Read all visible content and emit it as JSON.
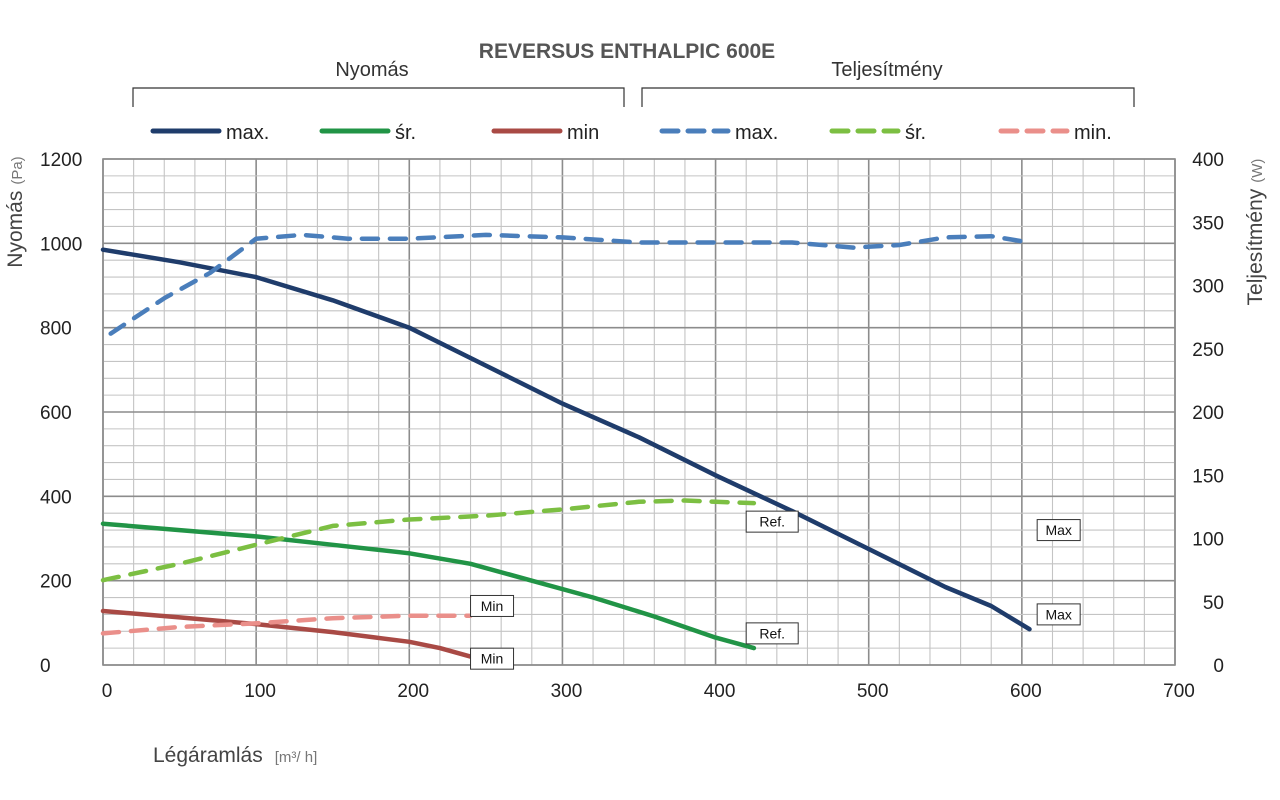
{
  "chart_data": {
    "type": "line",
    "title": "REVERSUS ENTHALPIC 600E",
    "groups": [
      {
        "label": "Nyomás",
        "axis": "left"
      },
      {
        "label": "Teljesítmény",
        "axis": "right"
      }
    ],
    "xlabel": "Légáramlás",
    "xunit": "[m³/ h]",
    "ylabel": "Nyomás",
    "yunit": "(Pa)",
    "y2label": "Teljesítmény",
    "y2unit": "(W)",
    "xlim": [
      0,
      700
    ],
    "ylim": [
      0,
      1200
    ],
    "y2lim": [
      0,
      400
    ],
    "xticks": [
      0,
      100,
      200,
      300,
      400,
      500,
      600,
      700
    ],
    "yticks": [
      0,
      200,
      400,
      600,
      800,
      1000,
      1200
    ],
    "y2ticks": [
      0,
      50,
      100,
      150,
      200,
      250,
      300,
      350,
      400
    ],
    "grid": true,
    "legend_position": "top",
    "series": [
      {
        "name": "max.",
        "group": "Nyomás",
        "axis": "left",
        "style": "solid",
        "color": "#1f3c6b",
        "x": [
          0,
          50,
          100,
          150,
          200,
          250,
          300,
          350,
          400,
          450,
          500,
          550,
          580,
          605
        ],
        "y": [
          985,
          955,
          920,
          865,
          800,
          710,
          620,
          540,
          450,
          365,
          275,
          185,
          140,
          85
        ]
      },
      {
        "name": "śr.",
        "group": "Nyomás",
        "axis": "left",
        "style": "solid",
        "color": "#219446",
        "x": [
          0,
          50,
          100,
          150,
          200,
          240,
          280,
          320,
          360,
          400,
          425
        ],
        "y": [
          335,
          320,
          305,
          285,
          265,
          240,
          200,
          160,
          115,
          65,
          40
        ]
      },
      {
        "name": "min",
        "group": "Nyomás",
        "axis": "left",
        "style": "solid",
        "color": "#a94a45",
        "x": [
          0,
          50,
          100,
          150,
          200,
          220,
          240
        ],
        "y": [
          128,
          113,
          97,
          78,
          55,
          40,
          20
        ]
      },
      {
        "name": "max.",
        "group": "Teljesítmény",
        "axis": "right",
        "style": "dashed",
        "color": "#4a7ebb",
        "x": [
          5,
          40,
          70,
          100,
          130,
          160,
          200,
          250,
          300,
          350,
          400,
          450,
          490,
          520,
          550,
          580,
          605
        ],
        "y": [
          262,
          290,
          310,
          337,
          340,
          337,
          337,
          340,
          338,
          334,
          334,
          334,
          330,
          332,
          338,
          339,
          334
        ]
      },
      {
        "name": "śr.",
        "group": "Teljesítmény",
        "axis": "right",
        "style": "dashed",
        "color": "#7cbf42",
        "x": [
          0,
          50,
          100,
          150,
          200,
          250,
          300,
          350,
          380,
          400,
          425
        ],
        "y": [
          67,
          80,
          95,
          110,
          115,
          118,
          123,
          129,
          130,
          129,
          128
        ]
      },
      {
        "name": "min.",
        "group": "Teljesítmény",
        "axis": "right",
        "style": "dashed",
        "color": "#ea8f8a",
        "x": [
          0,
          50,
          100,
          150,
          200,
          240
        ],
        "y": [
          25,
          30,
          33,
          37,
          39,
          39
        ]
      }
    ],
    "annotations": [
      {
        "text": "Max",
        "series": "Teljesítmény max.",
        "at_x": 610,
        "at_y": 320,
        "axis": "left"
      },
      {
        "text": "Max",
        "series": "Nyomás max.",
        "at_x": 610,
        "at_y": 120,
        "axis": "left"
      },
      {
        "text": "Ref.",
        "series": "Teljesítmény śr.",
        "at_x": 420,
        "at_y": 340,
        "axis": "left"
      },
      {
        "text": "Ref.",
        "series": "Nyomás śr.",
        "at_x": 420,
        "at_y": 75,
        "axis": "left"
      },
      {
        "text": "Min",
        "series": "Teljesítmény min.",
        "at_x": 240,
        "at_y": 140,
        "axis": "left"
      },
      {
        "text": "Min",
        "series": "Nyomás min",
        "at_x": 240,
        "at_y": 15,
        "axis": "left"
      }
    ]
  }
}
